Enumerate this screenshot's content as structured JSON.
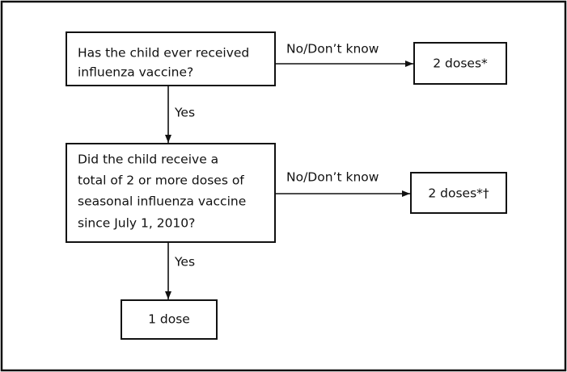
{
  "nodes": [
    {
      "lines": [
        "Has the child ever received",
        "influenza vaccine?"
      ]
    },
    {
      "label": "2 doses*"
    },
    {
      "lines": [
        "Did the child receive a",
        "total of 2 or more doses of",
        "seasonal influenza vaccine",
        "since July 1, 2010?"
      ]
    },
    {
      "label": "2 doses*†"
    },
    {
      "label": "1 dose"
    }
  ],
  "edges": [
    {
      "label": "No/Don’t know"
    },
    {
      "label": "Yes"
    },
    {
      "label": "No/Don’t know"
    },
    {
      "label": "Yes"
    }
  ]
}
